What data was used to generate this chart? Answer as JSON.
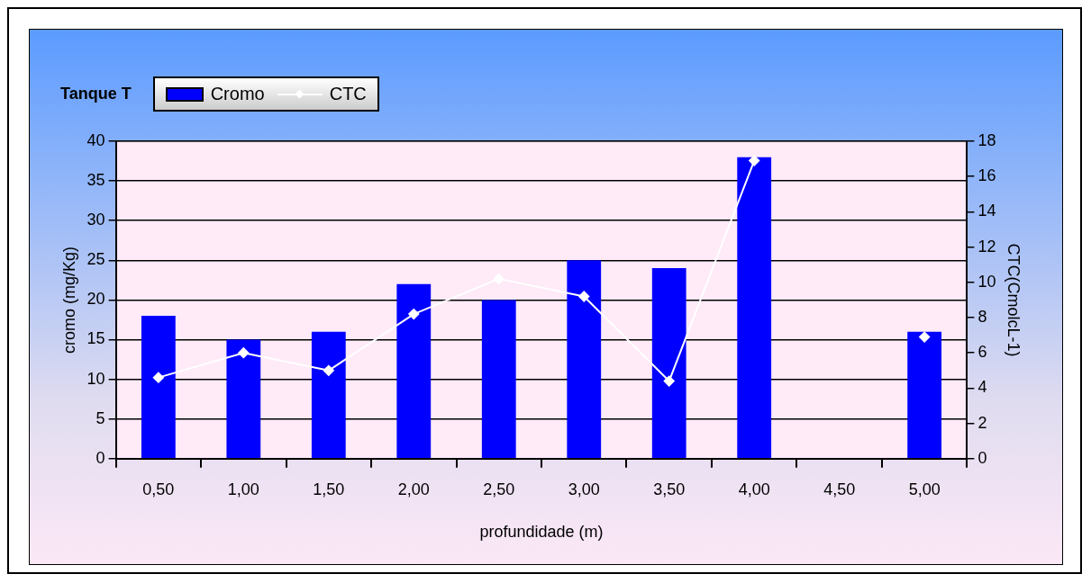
{
  "chart_data": {
    "type": "bar",
    "title": "Tanque T",
    "xlabel": "profundidade (m)",
    "ylabel": "cromo (mg/Kg)",
    "y2label": "CTC(CmolcL-1)",
    "categories": [
      "0,50",
      "1,00",
      "1,50",
      "2,00",
      "2,50",
      "3,00",
      "3,50",
      "4,00",
      "4,50",
      "5,00"
    ],
    "series": [
      {
        "name": "Cromo",
        "color": "#0000ff",
        "values": [
          18,
          15,
          16,
          22,
          20,
          25,
          24,
          38,
          null,
          16
        ]
      },
      {
        "name": "CTC",
        "type": "line",
        "axis": "y2",
        "color": "#ffffff",
        "values": [
          4.6,
          6.0,
          5.0,
          8.2,
          10.2,
          9.2,
          4.4,
          16.9,
          null,
          6.9
        ]
      }
    ],
    "ylim": [
      0,
      40
    ],
    "yticks": [
      0,
      5,
      10,
      15,
      20,
      25,
      30,
      35,
      40
    ],
    "y2lim": [
      0,
      18
    ],
    "y2ticks": [
      0,
      2,
      4,
      6,
      8,
      10,
      12,
      14,
      16,
      18
    ],
    "grid": "y",
    "legend": "top left",
    "marker": "diamond"
  }
}
